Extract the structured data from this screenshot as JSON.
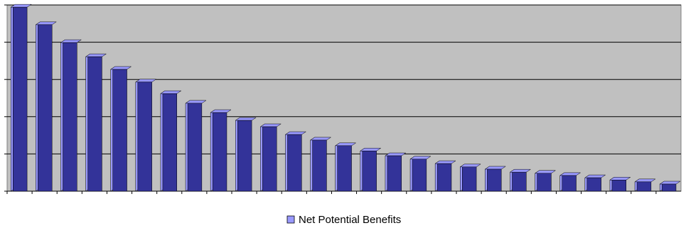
{
  "chart_data": {
    "type": "bar3d",
    "categories": [
      null,
      null,
      null,
      null,
      null,
      null,
      null,
      null,
      null,
      null,
      null,
      null,
      null,
      null,
      null,
      null,
      null,
      null,
      null,
      null,
      null,
      null,
      null,
      null,
      null,
      null,
      null
    ],
    "series": [
      {
        "name": "Net Potential Benefits",
        "color": "#333399",
        "values": [
          4.94,
          4.47,
          3.99,
          3.61,
          3.27,
          2.93,
          2.62,
          2.36,
          2.11,
          1.9,
          1.73,
          1.52,
          1.37,
          1.22,
          1.08,
          0.95,
          0.86,
          0.74,
          0.65,
          0.59,
          0.51,
          0.48,
          0.42,
          0.36,
          0.3,
          0.25,
          0.19
        ]
      }
    ],
    "ylim": [
      0,
      5
    ],
    "yticks": [
      0,
      1,
      2,
      3,
      4,
      5
    ],
    "grid": true,
    "legend": "bottom"
  }
}
